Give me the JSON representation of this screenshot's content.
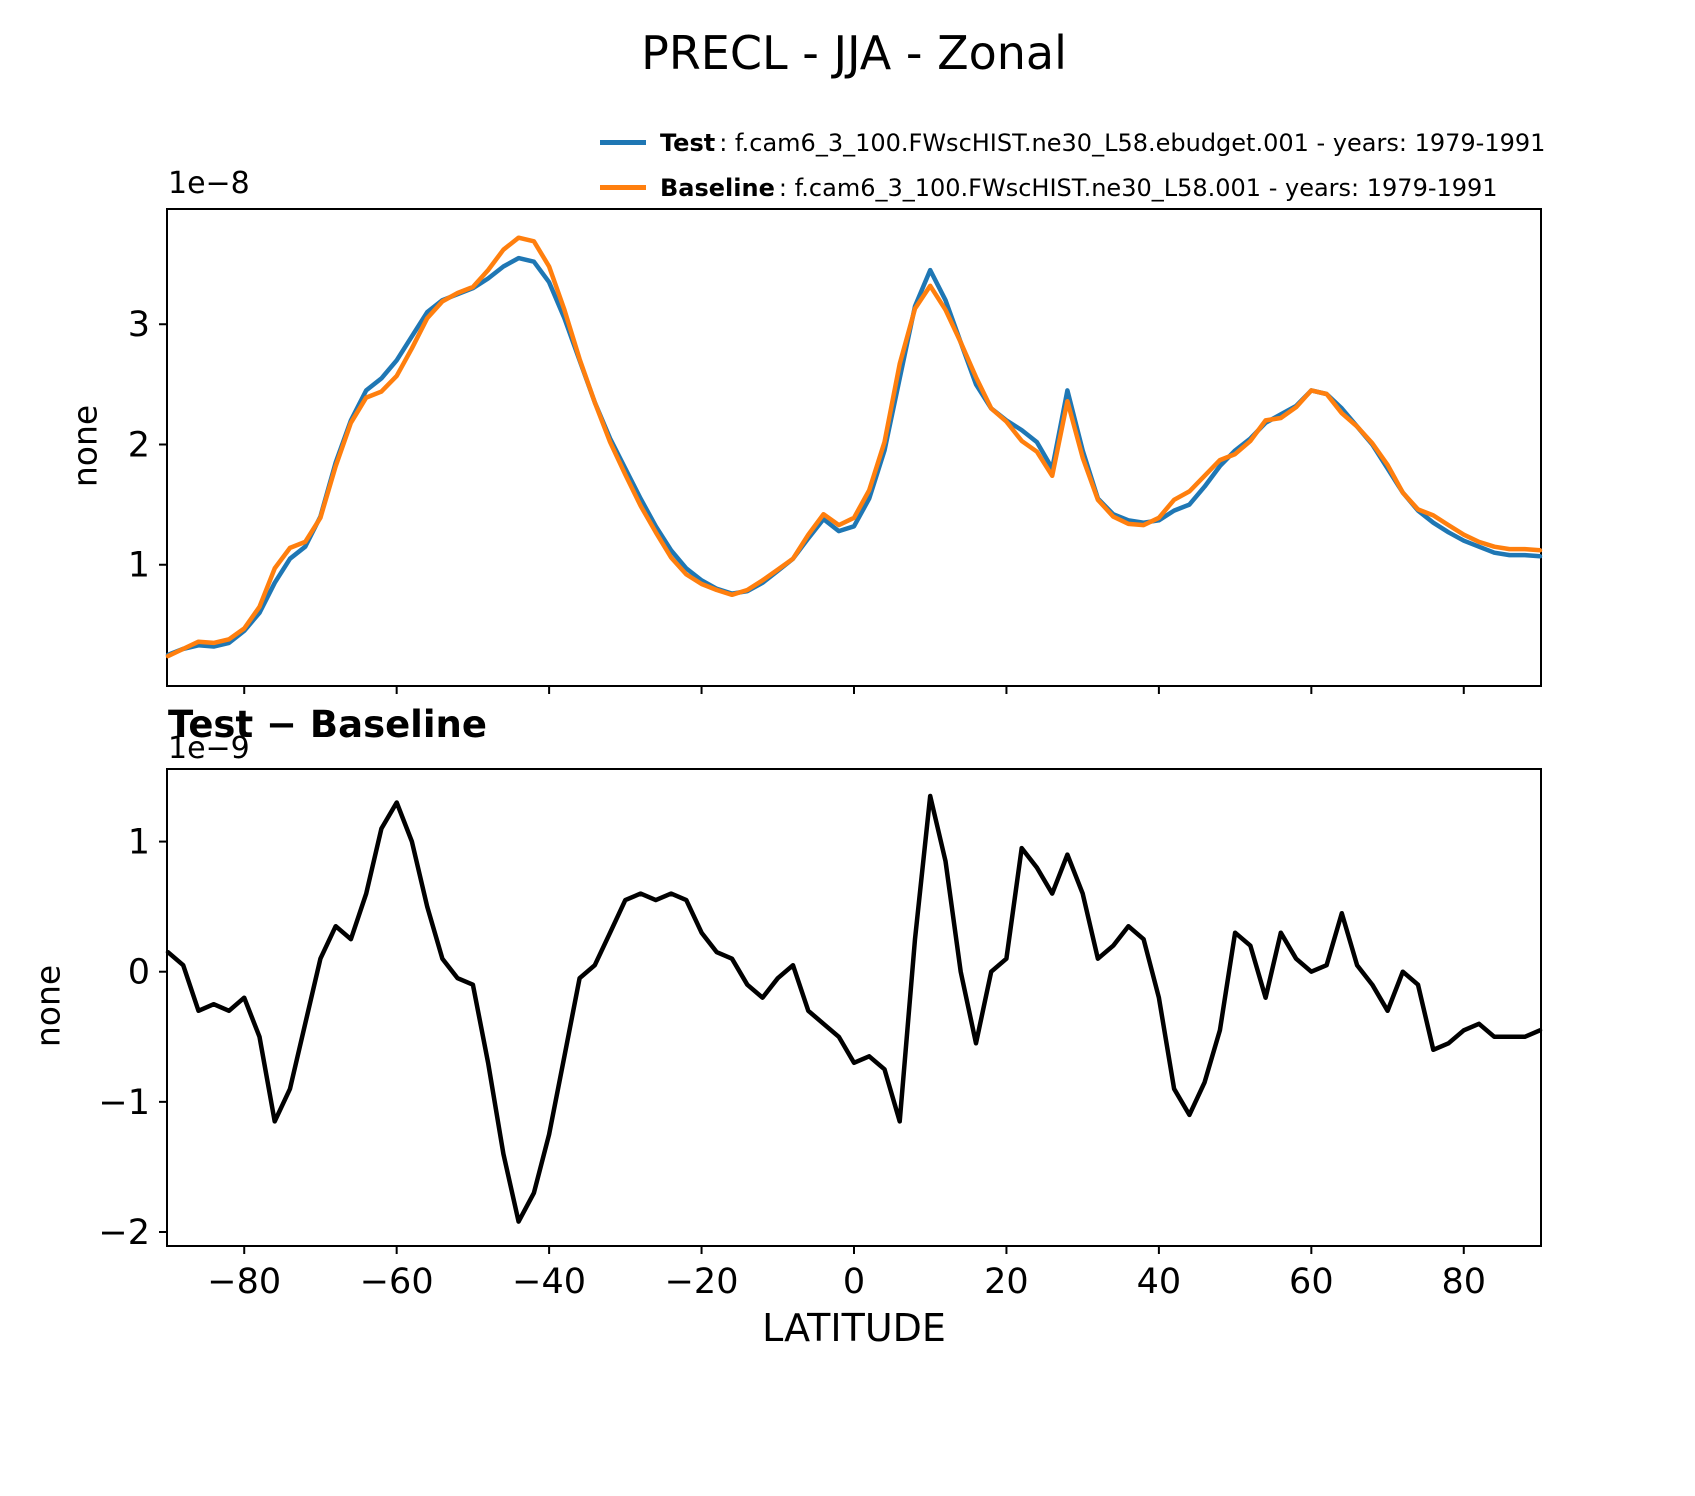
{
  "chart_data": [
    {
      "type": "line",
      "title": "PRECL - JJA - Zonal",
      "ylabel": "none",
      "offset_text": "1e−8",
      "xlim": [
        -90,
        90
      ],
      "ylim": [
        0,
        3.95
      ],
      "yticks": [
        1,
        2,
        3
      ],
      "yticklabels": [
        "1",
        "2",
        "3"
      ],
      "xticks": [
        -80,
        -60,
        -40,
        -20,
        0,
        20,
        40,
        60,
        80
      ],
      "grid": false,
      "legend_position": "upper right above axes",
      "x": [
        -90,
        -88,
        -86,
        -84,
        -82,
        -80,
        -78,
        -76,
        -74,
        -72,
        -70,
        -68,
        -66,
        -64,
        -62,
        -60,
        -58,
        -56,
        -54,
        -52,
        -50,
        -48,
        -46,
        -44,
        -42,
        -40,
        -38,
        -36,
        -34,
        -32,
        -30,
        -28,
        -26,
        -24,
        -22,
        -20,
        -18,
        -16,
        -14,
        -12,
        -10,
        -8,
        -6,
        -4,
        -2,
        0,
        2,
        4,
        6,
        8,
        10,
        12,
        14,
        16,
        18,
        20,
        22,
        24,
        26,
        28,
        30,
        32,
        34,
        36,
        38,
        40,
        42,
        44,
        46,
        48,
        50,
        52,
        54,
        56,
        58,
        60,
        62,
        64,
        66,
        68,
        70,
        72,
        74,
        76,
        78,
        80,
        82,
        84,
        86,
        88,
        90
      ],
      "series": [
        {
          "name": "Test",
          "legend_desc": " : f.cam6_3_100.FWscHIST.ne30_L58.ebudget.001 - years: 1979-1991",
          "color": "#1f77b4",
          "values": [
            0.25,
            0.3,
            0.33,
            0.32,
            0.35,
            0.45,
            0.6,
            0.85,
            1.05,
            1.15,
            1.4,
            1.85,
            2.2,
            2.45,
            2.55,
            2.7,
            2.9,
            3.1,
            3.2,
            3.25,
            3.3,
            3.38,
            3.48,
            3.55,
            3.52,
            3.35,
            3.05,
            2.7,
            2.35,
            2.05,
            1.8,
            1.55,
            1.32,
            1.12,
            0.97,
            0.87,
            0.8,
            0.76,
            0.78,
            0.85,
            0.95,
            1.05,
            1.22,
            1.38,
            1.28,
            1.32,
            1.55,
            1.95,
            2.55,
            3.15,
            3.45,
            3.2,
            2.85,
            2.5,
            2.3,
            2.2,
            2.12,
            2.02,
            1.8,
            2.45,
            1.95,
            1.55,
            1.42,
            1.37,
            1.35,
            1.37,
            1.45,
            1.5,
            1.65,
            1.82,
            1.95,
            2.05,
            2.18,
            2.25,
            2.32,
            2.45,
            2.42,
            2.3,
            2.15,
            2.0,
            1.8,
            1.6,
            1.45,
            1.35,
            1.27,
            1.2,
            1.15,
            1.1,
            1.08,
            1.08,
            1.07
          ]
        },
        {
          "name": "Baseline",
          "legend_desc": " : f.cam6_3_100.FWscHIST.ne30_L58.001 - years: 1979-1991",
          "color": "#ff7f0e",
          "values": [
            0.24,
            0.3,
            0.36,
            0.35,
            0.38,
            0.47,
            0.65,
            0.97,
            1.14,
            1.19,
            1.39,
            1.82,
            2.18,
            2.39,
            2.44,
            2.57,
            2.8,
            3.05,
            3.19,
            3.26,
            3.31,
            3.45,
            3.62,
            3.72,
            3.69,
            3.48,
            3.12,
            2.71,
            2.35,
            2.02,
            1.75,
            1.49,
            1.27,
            1.06,
            0.92,
            0.84,
            0.79,
            0.75,
            0.79,
            0.87,
            0.96,
            1.05,
            1.25,
            1.42,
            1.33,
            1.39,
            1.62,
            2.02,
            2.67,
            3.13,
            3.32,
            3.12,
            2.85,
            2.56,
            2.3,
            2.19,
            2.03,
            1.94,
            1.74,
            2.36,
            1.89,
            1.54,
            1.4,
            1.34,
            1.33,
            1.39,
            1.54,
            1.61,
            1.74,
            1.87,
            1.92,
            2.03,
            2.2,
            2.22,
            2.31,
            2.45,
            2.42,
            2.26,
            2.15,
            2.01,
            1.83,
            1.6,
            1.46,
            1.41,
            1.33,
            1.25,
            1.19,
            1.15,
            1.13,
            1.13,
            1.12
          ]
        }
      ]
    },
    {
      "type": "line",
      "title": "Test − Baseline",
      "ylabel": "none",
      "xlabel": "LATITUDE",
      "offset_text": "1e−9",
      "xlim": [
        -90,
        90
      ],
      "ylim": [
        -2.1,
        1.55
      ],
      "yticks": [
        -2,
        -1,
        0,
        1
      ],
      "yticklabels": [
        "−2",
        "−1",
        "0",
        "1"
      ],
      "xticks": [
        -80,
        -60,
        -40,
        -20,
        0,
        20,
        40,
        60,
        80
      ],
      "xticklabels": [
        "−80",
        "−60",
        "−40",
        "−20",
        "0",
        "20",
        "40",
        "60",
        "80"
      ],
      "grid": false,
      "x": [
        -90,
        -88,
        -86,
        -84,
        -82,
        -80,
        -78,
        -76,
        -74,
        -72,
        -70,
        -68,
        -66,
        -64,
        -62,
        -60,
        -58,
        -56,
        -54,
        -52,
        -50,
        -48,
        -46,
        -44,
        -42,
        -40,
        -38,
        -36,
        -34,
        -32,
        -30,
        -28,
        -26,
        -24,
        -22,
        -20,
        -18,
        -16,
        -14,
        -12,
        -10,
        -8,
        -6,
        -4,
        -2,
        0,
        2,
        4,
        6,
        8,
        10,
        12,
        14,
        16,
        18,
        20,
        22,
        24,
        26,
        28,
        30,
        32,
        34,
        36,
        38,
        40,
        42,
        44,
        46,
        48,
        50,
        52,
        54,
        56,
        58,
        60,
        62,
        64,
        66,
        68,
        70,
        72,
        74,
        76,
        78,
        80,
        82,
        84,
        86,
        88,
        90
      ],
      "series": [
        {
          "name": "Test minus Baseline",
          "color": "#000000",
          "values": [
            0.15,
            0.05,
            -0.3,
            -0.25,
            -0.3,
            -0.2,
            -0.5,
            -1.15,
            -0.9,
            -0.4,
            0.1,
            0.35,
            0.25,
            0.6,
            1.1,
            1.3,
            1.0,
            0.5,
            0.1,
            -0.05,
            -0.1,
            -0.7,
            -1.4,
            -1.92,
            -1.7,
            -1.25,
            -0.65,
            -0.05,
            0.05,
            0.3,
            0.55,
            0.6,
            0.55,
            0.6,
            0.55,
            0.3,
            0.15,
            0.1,
            -0.1,
            -0.2,
            -0.05,
            0.05,
            -0.3,
            -0.4,
            -0.5,
            -0.7,
            -0.65,
            -0.75,
            -1.15,
            0.25,
            1.35,
            0.85,
            0.0,
            -0.55,
            0.0,
            0.1,
            0.95,
            0.8,
            0.6,
            0.9,
            0.6,
            0.1,
            0.2,
            0.35,
            0.25,
            -0.2,
            -0.9,
            -1.1,
            -0.85,
            -0.45,
            0.3,
            0.2,
            -0.2,
            0.3,
            0.1,
            0.0,
            0.05,
            0.45,
            0.05,
            -0.1,
            -0.3,
            0.0,
            -0.1,
            -0.6,
            -0.55,
            -0.45,
            -0.4,
            -0.5,
            -0.5,
            -0.5,
            -0.45
          ]
        }
      ]
    }
  ]
}
